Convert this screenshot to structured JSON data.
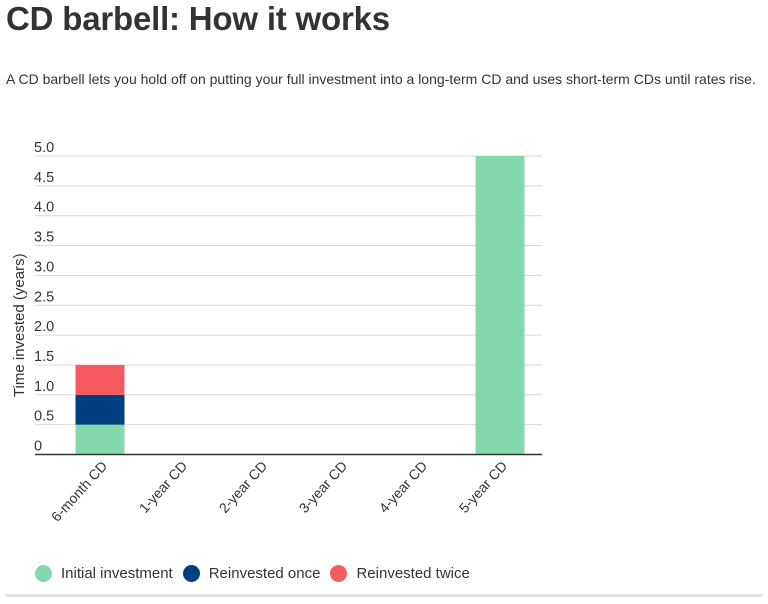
{
  "title": "CD barbell: How it works",
  "subtitle": "A CD barbell lets you hold off on putting your full investment into a long-term CD and uses short-term CDs until rates rise.",
  "chart_data": {
    "type": "bar",
    "stacked": true,
    "categories": [
      "6-month CD",
      "1-year CD",
      "2-year CD",
      "3-year CD",
      "4-year CD",
      "5-year CD"
    ],
    "series": [
      {
        "name": "Initial investment",
        "color": "#84d9ab",
        "values": [
          0.5,
          0,
          0,
          0,
          0,
          5.0
        ]
      },
      {
        "name": "Reinvested once",
        "color": "#003f7f",
        "values": [
          0.5,
          0,
          0,
          0,
          0,
          0
        ]
      },
      {
        "name": "Reinvested twice",
        "color": "#f75b5f",
        "values": [
          0.5,
          0,
          0,
          0,
          0,
          0
        ]
      }
    ],
    "ylabel": "Time invested (years)",
    "xlabel": "",
    "ylim": [
      0,
      5.0
    ],
    "yticks": [
      "0",
      "0.5",
      "1.0",
      "1.5",
      "2.0",
      "2.5",
      "3.0",
      "3.5",
      "4.0",
      "4.5",
      "5.0"
    ],
    "grid": true,
    "legend_position": "bottom-left"
  }
}
